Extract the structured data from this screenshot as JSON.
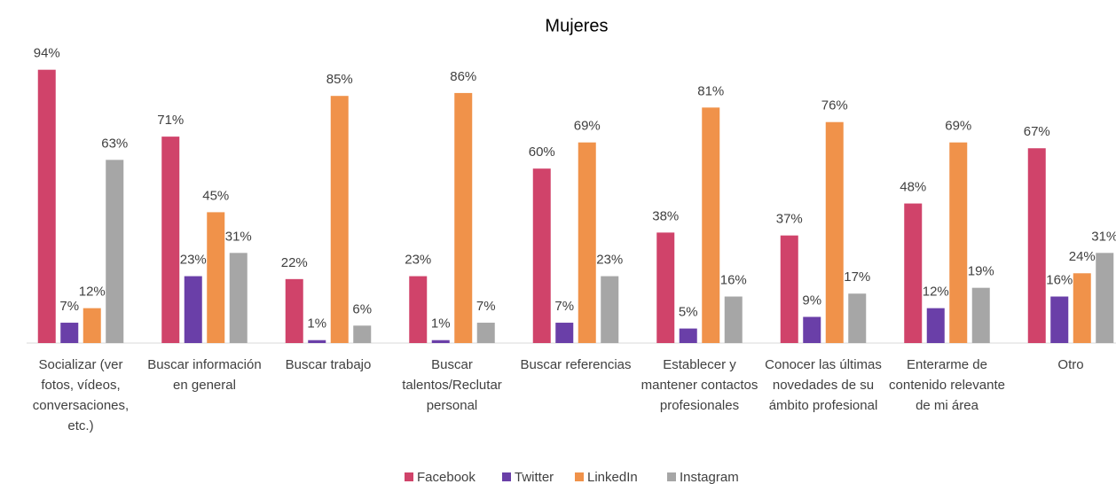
{
  "chart_data": {
    "type": "bar",
    "title": "Mujeres",
    "categories": [
      "Socializar (ver fotos, vídeos, conversaciones, etc.)",
      "Buscar información en general",
      "Buscar trabajo",
      "Buscar talentos/Reclutar personal",
      "Buscar referencias",
      "Establecer y mantener contactos profesionales",
      "Conocer las últimas novedades de su ámbito profesional",
      "Enterarme de contenido relevante de mi área",
      "Otro"
    ],
    "series": [
      {
        "name": "Facebook",
        "color": "#d0436a",
        "values": [
          94,
          71,
          22,
          23,
          60,
          38,
          37,
          48,
          67
        ],
        "value_labels": [
          "94%",
          "71%",
          "22%",
          "23%",
          "60%",
          "38%",
          "37%",
          "48%",
          "67%"
        ]
      },
      {
        "name": "Twitter",
        "color": "#6a3fa8",
        "values": [
          7,
          23,
          1,
          1,
          7,
          5,
          9,
          12,
          16
        ],
        "value_labels": [
          "7%",
          "23%",
          "1%",
          "1%",
          "7%",
          "5%",
          "9%",
          "12%",
          "16%"
        ]
      },
      {
        "name": "LinkedIn",
        "color": "#f0924a",
        "values": [
          12,
          45,
          85,
          86,
          69,
          81,
          76,
          69,
          24
        ],
        "value_labels": [
          "12%",
          "45%",
          "85%",
          "86%",
          "69%",
          "81%",
          "76%",
          "69%",
          "24%"
        ]
      },
      {
        "name": "Instagram",
        "color": "#a6a6a6",
        "values": [
          63,
          31,
          6,
          7,
          23,
          16,
          17,
          19,
          31
        ],
        "value_labels": [
          "63%",
          "31%",
          "6%",
          "7%",
          "23%",
          "16%",
          "17%",
          "19%",
          "31%"
        ]
      }
    ],
    "ylim": [
      0,
      100
    ],
    "legend": "bottom"
  }
}
